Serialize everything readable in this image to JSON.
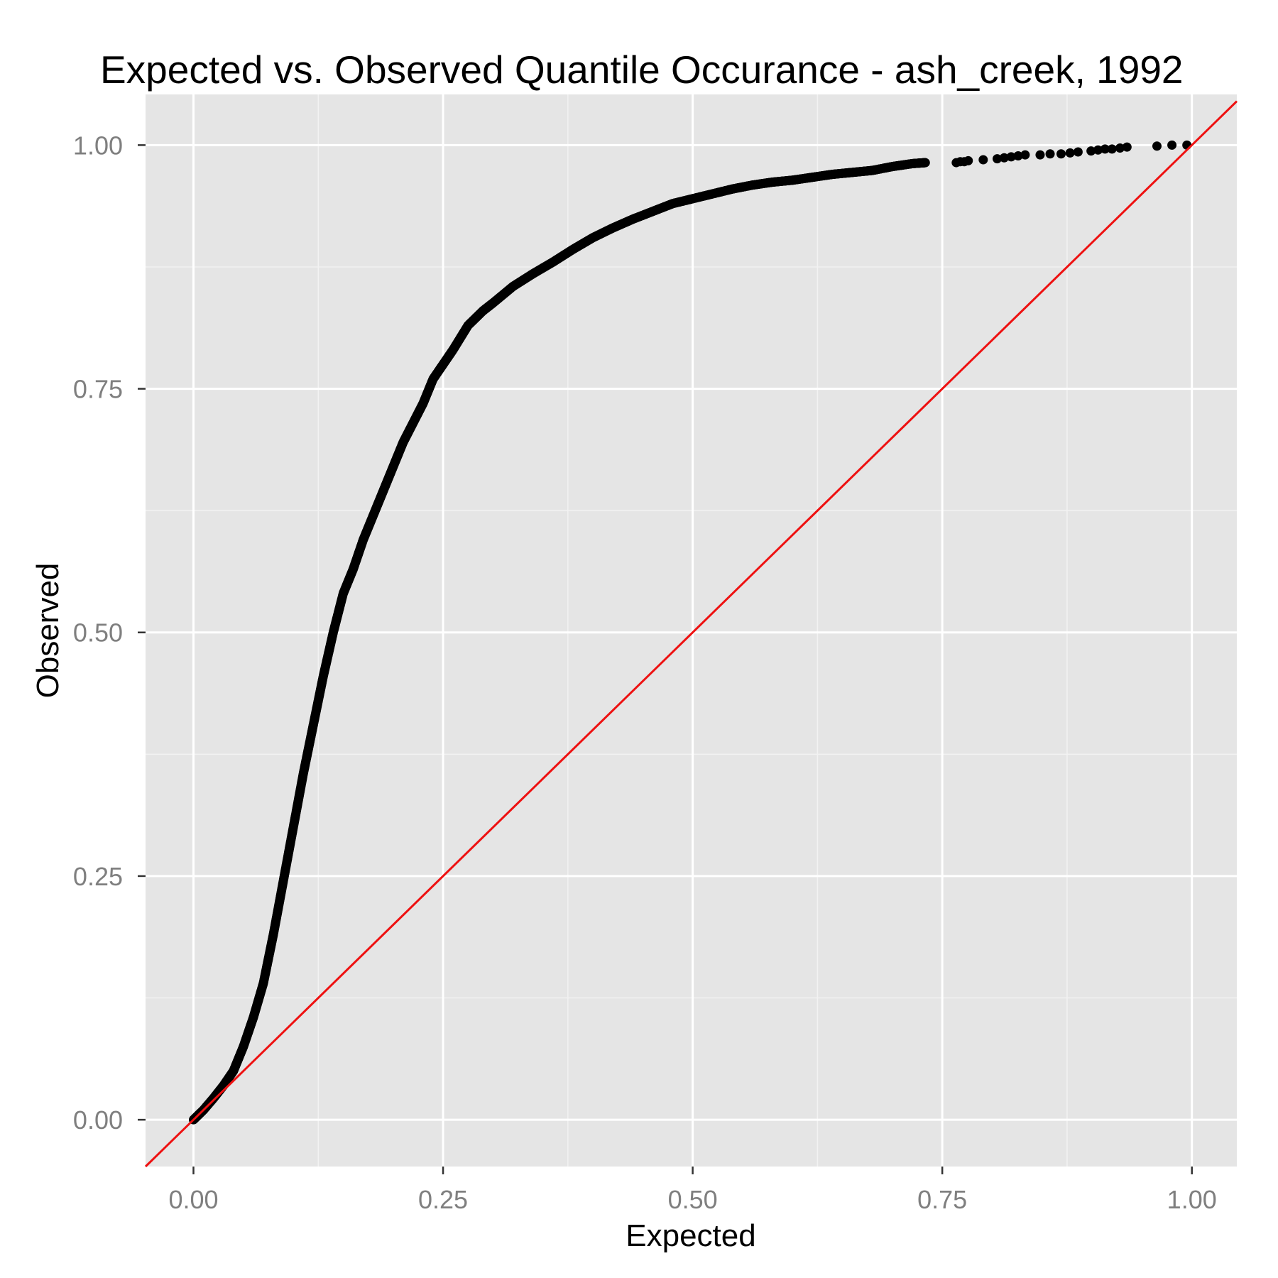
{
  "chart_data": {
    "type": "scatter",
    "title": "Expected vs. Observed Quantile Occurance - ash_creek, 1992",
    "xlabel": "Expected",
    "ylabel": "Observed",
    "xlim": [
      -0.048,
      1.045
    ],
    "ylim": [
      -0.048,
      1.052
    ],
    "x_ticks": [
      0,
      0.25,
      0.5,
      0.75,
      1
    ],
    "y_ticks": [
      0,
      0.25,
      0.5,
      0.75,
      1
    ],
    "x_tick_labels": [
      "0.00",
      "0.25",
      "0.50",
      "0.75",
      "1.00"
    ],
    "y_tick_labels": [
      "0.00",
      "0.25",
      "0.50",
      "0.75",
      "1.00"
    ],
    "grid": true,
    "legend": "none",
    "panel_background": "#e5e5e5",
    "grid_color": "#ffffff",
    "point_color": "#000000",
    "reference_line": {
      "slope": 1,
      "intercept": 0,
      "color": "#ee1111"
    },
    "series": [
      {
        "dense_curve": [
          [
            0.0,
            0.0
          ],
          [
            0.01,
            0.01
          ],
          [
            0.02,
            0.022
          ],
          [
            0.03,
            0.035
          ],
          [
            0.04,
            0.05
          ],
          [
            0.05,
            0.075
          ],
          [
            0.06,
            0.105
          ],
          [
            0.07,
            0.14
          ],
          [
            0.08,
            0.19
          ],
          [
            0.09,
            0.245
          ],
          [
            0.1,
            0.3
          ],
          [
            0.11,
            0.355
          ],
          [
            0.12,
            0.405
          ],
          [
            0.13,
            0.455
          ],
          [
            0.14,
            0.5
          ],
          [
            0.15,
            0.54
          ],
          [
            0.16,
            0.565
          ],
          [
            0.17,
            0.595
          ],
          [
            0.18,
            0.62
          ],
          [
            0.19,
            0.645
          ],
          [
            0.2,
            0.67
          ],
          [
            0.21,
            0.695
          ],
          [
            0.22,
            0.715
          ],
          [
            0.23,
            0.735
          ],
          [
            0.24,
            0.76
          ],
          [
            0.25,
            0.775
          ],
          [
            0.26,
            0.79
          ],
          [
            0.275,
            0.815
          ],
          [
            0.29,
            0.83
          ],
          [
            0.3,
            0.838
          ],
          [
            0.32,
            0.855
          ],
          [
            0.34,
            0.868
          ],
          [
            0.36,
            0.88
          ],
          [
            0.38,
            0.893
          ],
          [
            0.4,
            0.905
          ],
          [
            0.42,
            0.915
          ],
          [
            0.44,
            0.924
          ],
          [
            0.46,
            0.932
          ],
          [
            0.48,
            0.94
          ],
          [
            0.5,
            0.945
          ],
          [
            0.52,
            0.95
          ],
          [
            0.54,
            0.955
          ],
          [
            0.56,
            0.959
          ],
          [
            0.58,
            0.962
          ],
          [
            0.6,
            0.964
          ],
          [
            0.62,
            0.967
          ],
          [
            0.64,
            0.97
          ],
          [
            0.66,
            0.972
          ],
          [
            0.68,
            0.974
          ],
          [
            0.7,
            0.978
          ],
          [
            0.72,
            0.981
          ],
          [
            0.733,
            0.982
          ]
        ],
        "sparse_points": [
          [
            0.764,
            0.982
          ],
          [
            0.768,
            0.983
          ],
          [
            0.772,
            0.983
          ],
          [
            0.776,
            0.984
          ],
          [
            0.791,
            0.985
          ],
          [
            0.805,
            0.986
          ],
          [
            0.812,
            0.987
          ],
          [
            0.819,
            0.988
          ],
          [
            0.826,
            0.989
          ],
          [
            0.833,
            0.99
          ],
          [
            0.848,
            0.99
          ],
          [
            0.858,
            0.991
          ],
          [
            0.869,
            0.991
          ],
          [
            0.878,
            0.992
          ],
          [
            0.886,
            0.993
          ],
          [
            0.899,
            0.994
          ],
          [
            0.906,
            0.995
          ],
          [
            0.913,
            0.996
          ],
          [
            0.92,
            0.996
          ],
          [
            0.928,
            0.997
          ],
          [
            0.935,
            0.998
          ],
          [
            0.965,
            0.999
          ],
          [
            0.98,
            1.0
          ],
          [
            0.995,
            1.0
          ]
        ]
      }
    ]
  }
}
